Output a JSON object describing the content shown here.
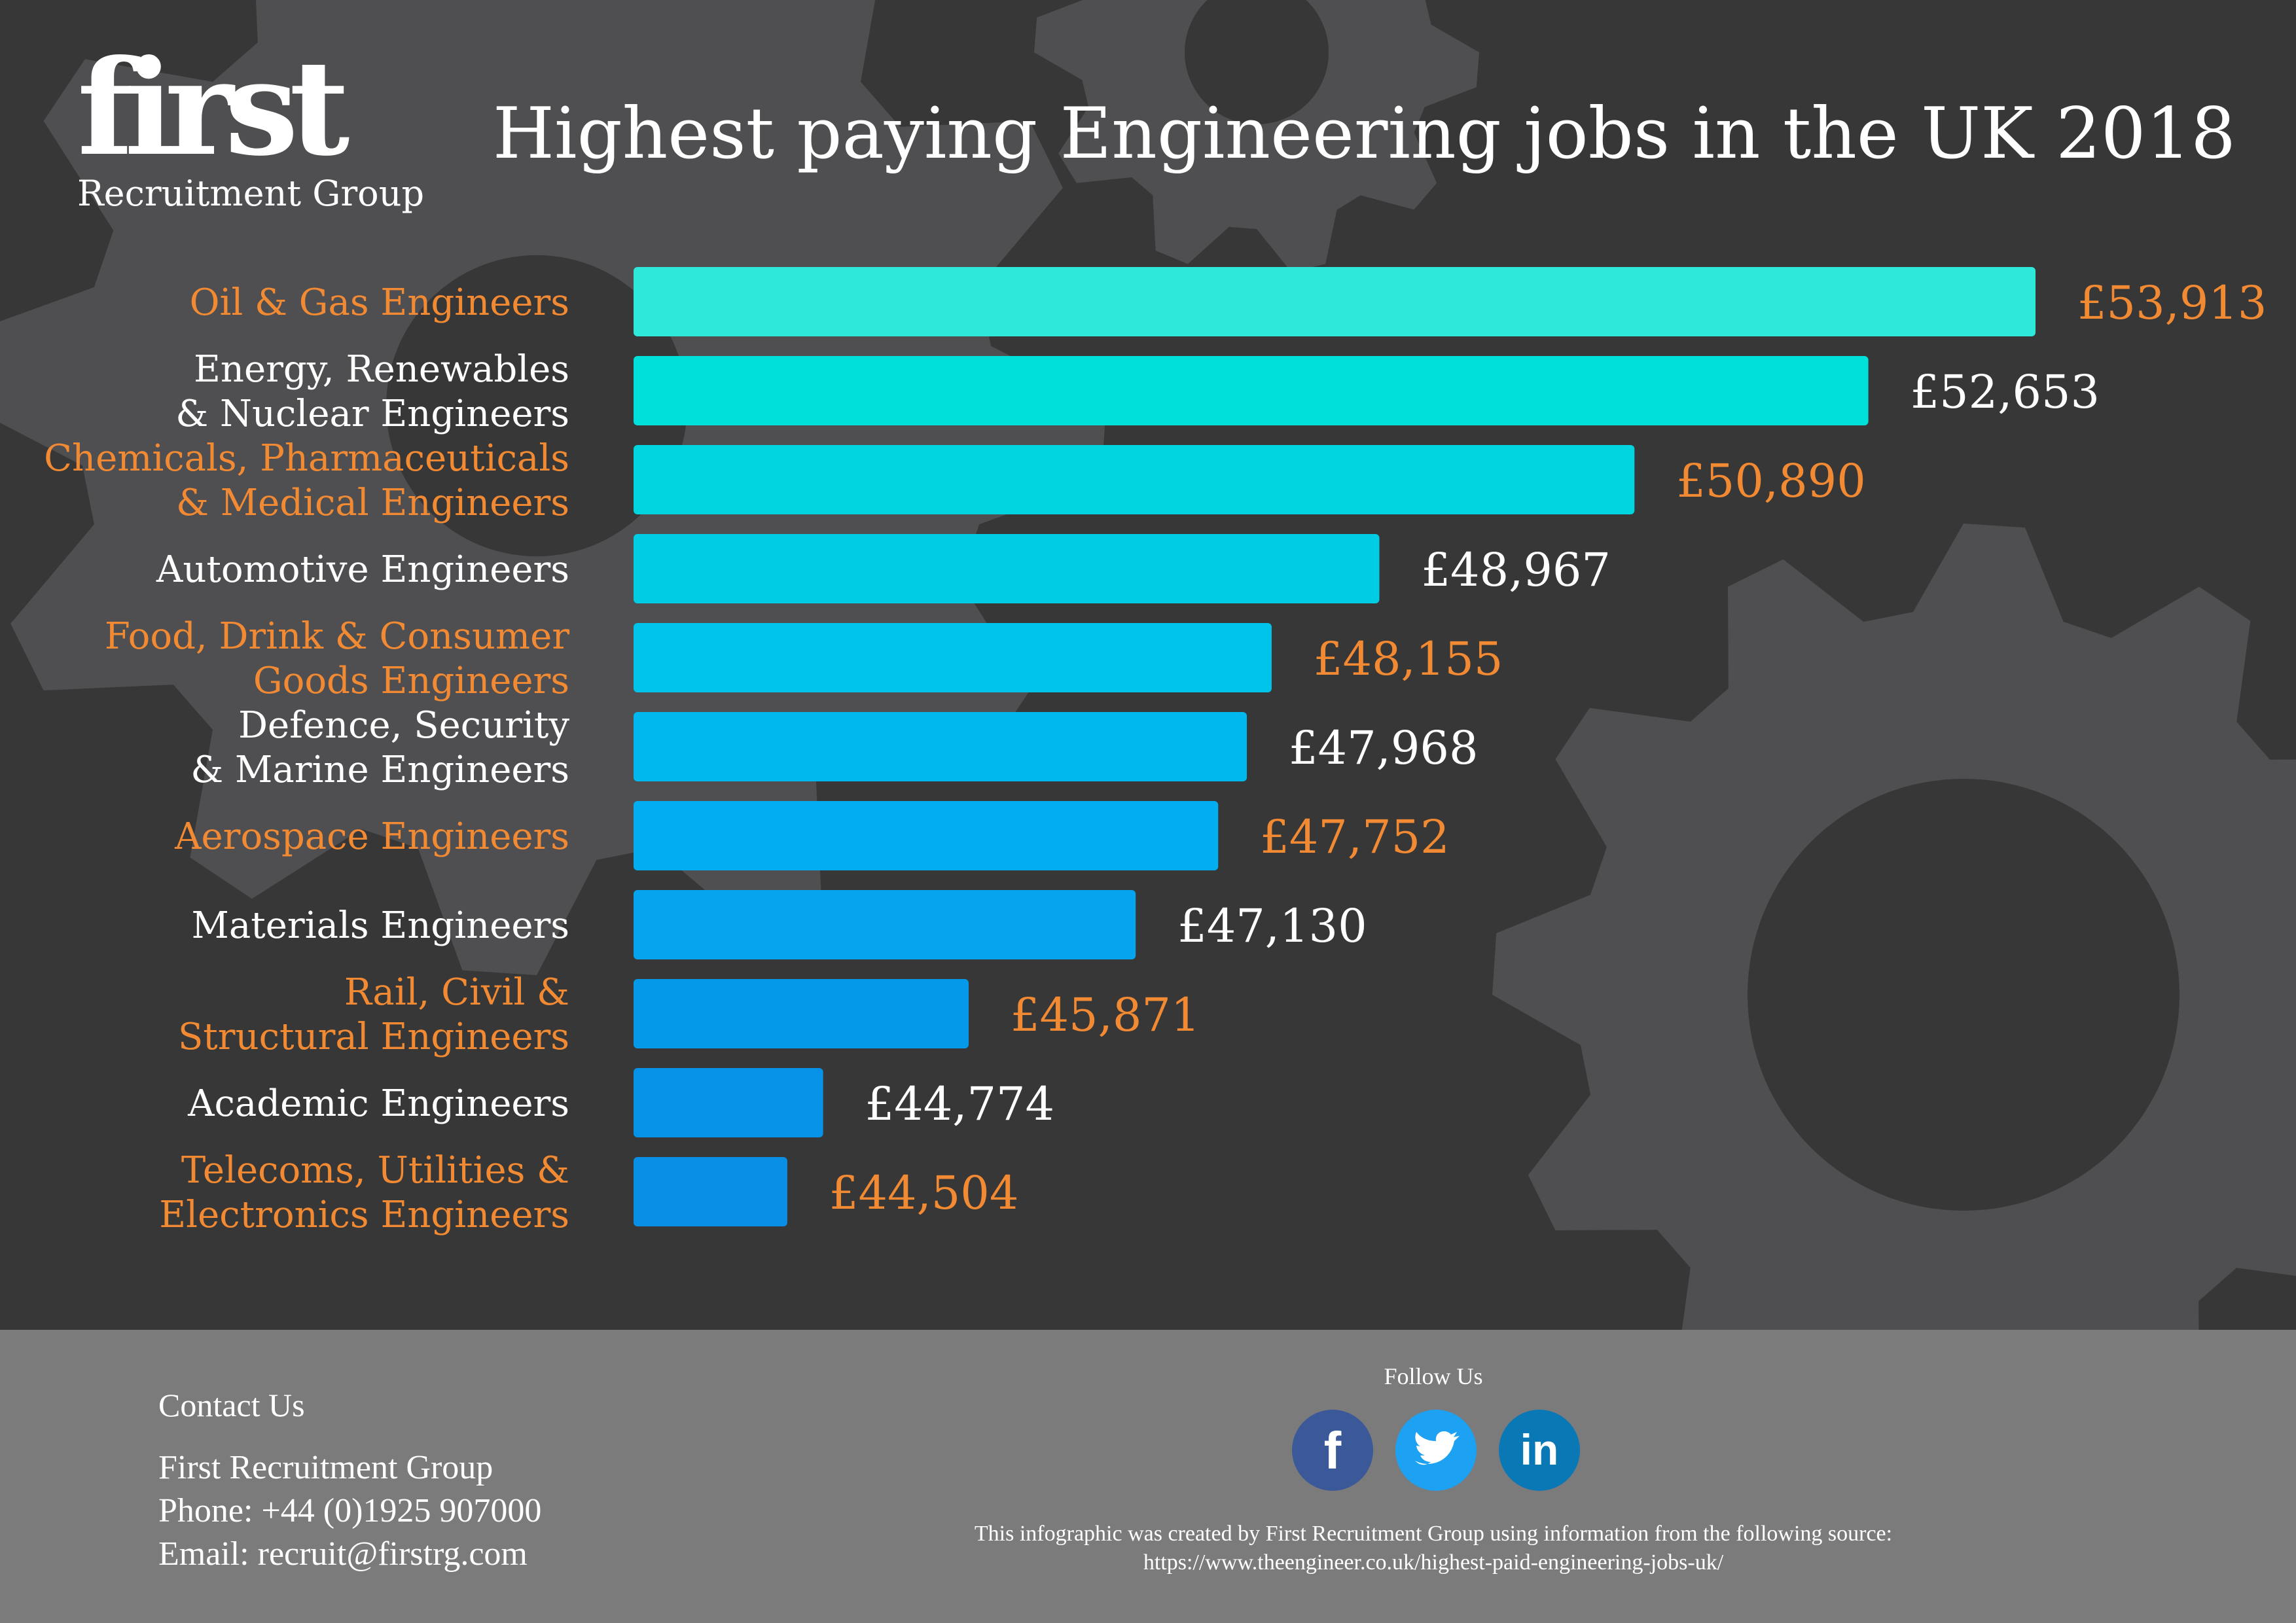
{
  "logo": {
    "word": "first",
    "sub": "Recruitment Group"
  },
  "chart_data": {
    "type": "bar",
    "orientation": "horizontal",
    "title": "Highest paying Engineering jobs in the UK 2018",
    "currency": "£",
    "categories": [
      [
        "Oil & Gas Engineers"
      ],
      [
        "Energy, Renewables",
        "& Nuclear Engineers"
      ],
      [
        "Chemicals, Pharmaceuticals",
        "& Medical Engineers"
      ],
      [
        "Automotive Engineers"
      ],
      [
        "Food, Drink & Consumer",
        "Goods Engineers"
      ],
      [
        "Defence, Security",
        "& Marine Engineers"
      ],
      [
        "Aerospace Engineers"
      ],
      [
        "Materials Engineers"
      ],
      [
        "Rail, Civil &",
        "Structural Engineers"
      ],
      [
        "Academic Engineers"
      ],
      [
        "Telecoms, Utilities &",
        "Electronics Engineers"
      ]
    ],
    "values": [
      53913,
      52653,
      50890,
      48967,
      48155,
      47968,
      47752,
      47130,
      45871,
      44774,
      44504
    ],
    "value_labels": [
      "£53,913",
      "£52,653",
      "£50,890",
      "£48,967",
      "£48,155",
      "£47,968",
      "£47,752",
      "£47,130",
      "£45,871",
      "£44,774",
      "£44,504"
    ],
    "bar_colors": [
      "#2ee8d9",
      "#00e0db",
      "#00d4df",
      "#00cde4",
      "#00c3ea",
      "#00b8ee",
      "#03aef0",
      "#06a3ee",
      "#0599ea",
      "#0592e7",
      "#0a8fe6"
    ],
    "label_colors": [
      "#f28a33",
      "#ffffff"
    ]
  },
  "footer": {
    "contact_title": "Contact Us",
    "company": "First Recruitment Group",
    "phone": "Phone: +44 (0)1925 907000",
    "email": "Email: recruit@firstrg.com",
    "follow": "Follow Us",
    "social": [
      {
        "name": "facebook",
        "glyph": "f",
        "color": "#3b5998"
      },
      {
        "name": "twitter",
        "glyph": "t",
        "color": "#1da1f2"
      },
      {
        "name": "linkedin",
        "glyph": "in",
        "color": "#0a78b5"
      }
    ],
    "source_line1": "This infographic was created by First Recruitment Group using information from the following source:",
    "source_line2": "https://www.theengineer.co.uk/highest-paid-engineering-jobs-uk/"
  }
}
